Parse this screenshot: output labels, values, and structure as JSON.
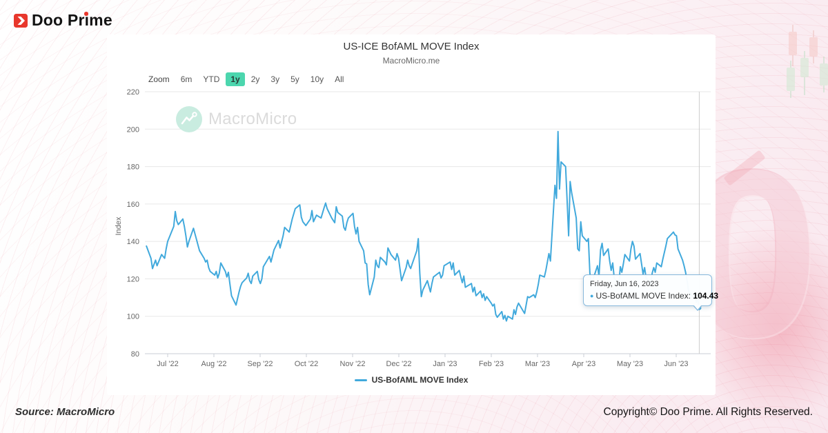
{
  "brand": {
    "name": "Doo Prime",
    "red": "#e8372c"
  },
  "background": {
    "decorative_zero": "0"
  },
  "footer": {
    "source": "Source: MacroMicro",
    "copyright": "Copyright© Doo Prime. All Rights Reserved."
  },
  "chart": {
    "title": "US-ICE BofAML MOVE Index",
    "subtitle": "MacroMicro.me",
    "watermark": "MacroMicro",
    "legend": "US-BofAML MOVE Index",
    "range_selector": {
      "zoom_label": "Zoom",
      "options": [
        "6m",
        "YTD",
        "1y",
        "2y",
        "3y",
        "5y",
        "10y",
        "All"
      ],
      "selected": "1y"
    },
    "tooltip": {
      "date": "Friday, Jun 16, 2023",
      "series_label": "US-BofAML MOVE Index:",
      "value": "104.43"
    },
    "colors": {
      "line": "#41a9dc",
      "range_selected_bg": "#4cd6ae",
      "grid": "#e7e7e7",
      "axis": "#c9ced4",
      "crosshair": "#cccccc",
      "tick_text": "#666666"
    }
  },
  "chart_data": {
    "type": "line",
    "title": "US-ICE BofAML MOVE Index",
    "subtitle": "MacroMicro.me",
    "xlabel": "",
    "ylabel": "Index",
    "ylim": [
      80,
      220
    ],
    "yticks": [
      80,
      100,
      120,
      140,
      160,
      180,
      200,
      220
    ],
    "xticks": [
      "Jul '22",
      "Aug '22",
      "Sep '22",
      "Oct '22",
      "Nov '22",
      "Dec '22",
      "Jan '23",
      "Feb '23",
      "Mar '23",
      "Apr '23",
      "May '23",
      "Jun '23"
    ],
    "grid": true,
    "legend_position": "bottom",
    "crosshair_x": "2023-06-16",
    "last_point": {
      "date": "2023-06-16",
      "label": "Friday, Jun 16, 2023",
      "value": 104.43
    },
    "series": [
      {
        "name": "US-BofAML MOVE Index",
        "color": "#41a9dc",
        "points": [
          [
            "2022-06-17",
            137.5
          ],
          [
            "2022-06-20",
            131
          ],
          [
            "2022-06-21",
            125.5
          ],
          [
            "2022-06-23",
            130
          ],
          [
            "2022-06-24",
            127
          ],
          [
            "2022-06-27",
            133
          ],
          [
            "2022-06-29",
            131
          ],
          [
            "2022-06-30",
            136
          ],
          [
            "2022-07-01",
            140
          ],
          [
            "2022-07-05",
            148
          ],
          [
            "2022-07-06",
            156
          ],
          [
            "2022-07-07",
            151
          ],
          [
            "2022-07-08",
            149
          ],
          [
            "2022-07-11",
            152
          ],
          [
            "2022-07-12",
            148
          ],
          [
            "2022-07-13",
            143
          ],
          [
            "2022-07-14",
            137
          ],
          [
            "2022-07-15",
            140
          ],
          [
            "2022-07-18",
            147
          ],
          [
            "2022-07-19",
            144
          ],
          [
            "2022-07-20",
            141
          ],
          [
            "2022-07-21",
            138
          ],
          [
            "2022-07-22",
            135
          ],
          [
            "2022-07-25",
            131
          ],
          [
            "2022-07-26",
            129
          ],
          [
            "2022-07-27",
            130
          ],
          [
            "2022-07-28",
            126
          ],
          [
            "2022-07-29",
            124
          ],
          [
            "2022-08-01",
            122
          ],
          [
            "2022-08-02",
            124
          ],
          [
            "2022-08-03",
            120.5
          ],
          [
            "2022-08-04",
            123
          ],
          [
            "2022-08-05",
            128.5
          ],
          [
            "2022-08-08",
            124
          ],
          [
            "2022-08-09",
            121
          ],
          [
            "2022-08-10",
            123.5
          ],
          [
            "2022-08-11",
            117
          ],
          [
            "2022-08-12",
            111
          ],
          [
            "2022-08-15",
            106
          ],
          [
            "2022-08-16",
            109.5
          ],
          [
            "2022-08-17",
            113
          ],
          [
            "2022-08-18",
            116
          ],
          [
            "2022-08-19",
            118
          ],
          [
            "2022-08-22",
            120.5
          ],
          [
            "2022-08-23",
            123
          ],
          [
            "2022-08-24",
            119
          ],
          [
            "2022-08-25",
            117.5
          ],
          [
            "2022-08-26",
            121.5
          ],
          [
            "2022-08-29",
            124
          ],
          [
            "2022-08-30",
            119.5
          ],
          [
            "2022-08-31",
            117.5
          ],
          [
            "2022-09-01",
            120
          ],
          [
            "2022-09-02",
            126.5
          ],
          [
            "2022-09-06",
            132
          ],
          [
            "2022-09-07",
            129
          ],
          [
            "2022-09-09",
            135.5
          ],
          [
            "2022-09-12",
            140.5
          ],
          [
            "2022-09-13",
            136.5
          ],
          [
            "2022-09-15",
            143
          ],
          [
            "2022-09-16",
            147.5
          ],
          [
            "2022-09-19",
            145
          ],
          [
            "2022-09-21",
            152
          ],
          [
            "2022-09-23",
            157.5
          ],
          [
            "2022-09-26",
            159.5
          ],
          [
            "2022-09-27",
            153
          ],
          [
            "2022-09-28",
            150.5
          ],
          [
            "2022-09-30",
            148.5
          ],
          [
            "2022-10-03",
            152
          ],
          [
            "2022-10-04",
            156.5
          ],
          [
            "2022-10-05",
            150.5
          ],
          [
            "2022-10-07",
            154
          ],
          [
            "2022-10-10",
            152.5
          ],
          [
            "2022-10-12",
            158
          ],
          [
            "2022-10-13",
            160.5
          ],
          [
            "2022-10-14",
            157.5
          ],
          [
            "2022-10-17",
            152.5
          ],
          [
            "2022-10-19",
            150
          ],
          [
            "2022-10-20",
            158.5
          ],
          [
            "2022-10-21",
            155.5
          ],
          [
            "2022-10-24",
            153.5
          ],
          [
            "2022-10-25",
            147.5
          ],
          [
            "2022-10-26",
            146
          ],
          [
            "2022-10-27",
            150
          ],
          [
            "2022-10-28",
            152.5
          ],
          [
            "2022-10-31",
            155
          ],
          [
            "2022-11-01",
            148
          ],
          [
            "2022-11-02",
            144
          ],
          [
            "2022-11-03",
            147.5
          ],
          [
            "2022-11-04",
            140
          ],
          [
            "2022-11-07",
            135
          ],
          [
            "2022-11-08",
            128.5
          ],
          [
            "2022-11-09",
            128
          ],
          [
            "2022-11-10",
            117
          ],
          [
            "2022-11-11",
            111.5
          ],
          [
            "2022-11-14",
            121
          ],
          [
            "2022-11-15",
            130
          ],
          [
            "2022-11-16",
            127
          ],
          [
            "2022-11-17",
            126
          ],
          [
            "2022-11-18",
            131.5
          ],
          [
            "2022-11-21",
            129
          ],
          [
            "2022-11-22",
            127.5
          ],
          [
            "2022-11-23",
            136.5
          ],
          [
            "2022-11-25",
            133
          ],
          [
            "2022-11-28",
            130
          ],
          [
            "2022-11-29",
            133.5
          ],
          [
            "2022-11-30",
            131
          ],
          [
            "2022-12-01",
            125
          ],
          [
            "2022-12-02",
            119
          ],
          [
            "2022-12-05",
            126
          ],
          [
            "2022-12-06",
            130
          ],
          [
            "2022-12-07",
            127
          ],
          [
            "2022-12-08",
            125.5
          ],
          [
            "2022-12-09",
            128
          ],
          [
            "2022-12-12",
            135
          ],
          [
            "2022-12-13",
            141.5
          ],
          [
            "2022-12-14",
            123
          ],
          [
            "2022-12-15",
            110.5
          ],
          [
            "2022-12-16",
            114
          ],
          [
            "2022-12-19",
            119
          ],
          [
            "2022-12-20",
            116
          ],
          [
            "2022-12-21",
            113
          ],
          [
            "2022-12-22",
            117.5
          ],
          [
            "2022-12-23",
            121
          ],
          [
            "2022-12-27",
            123.5
          ],
          [
            "2022-12-28",
            120.5
          ],
          [
            "2022-12-29",
            122
          ],
          [
            "2022-12-30",
            127
          ],
          [
            "2023-01-03",
            129
          ],
          [
            "2023-01-04",
            125
          ],
          [
            "2023-01-05",
            128.5
          ],
          [
            "2023-01-06",
            122
          ],
          [
            "2023-01-09",
            124.5
          ],
          [
            "2023-01-10",
            121
          ],
          [
            "2023-01-11",
            118
          ],
          [
            "2023-01-12",
            121.5
          ],
          [
            "2023-01-13",
            115.5
          ],
          [
            "2023-01-17",
            117.5
          ],
          [
            "2023-01-18",
            113
          ],
          [
            "2023-01-19",
            115.5
          ],
          [
            "2023-01-20",
            111
          ],
          [
            "2023-01-23",
            113.5
          ],
          [
            "2023-01-24",
            110
          ],
          [
            "2023-01-25",
            112
          ],
          [
            "2023-01-26",
            108.5
          ],
          [
            "2023-01-27",
            110.5
          ],
          [
            "2023-01-30",
            107
          ],
          [
            "2023-01-31",
            105.5
          ],
          [
            "2023-02-01",
            106.5
          ],
          [
            "2023-02-02",
            101
          ],
          [
            "2023-02-03",
            99.5
          ],
          [
            "2023-02-06",
            102.5
          ],
          [
            "2023-02-07",
            98.5
          ],
          [
            "2023-02-08",
            100.5
          ],
          [
            "2023-02-09",
            97.5
          ],
          [
            "2023-02-10",
            100
          ],
          [
            "2023-02-13",
            98.5
          ],
          [
            "2023-02-14",
            103.5
          ],
          [
            "2023-02-15",
            101
          ],
          [
            "2023-02-16",
            105
          ],
          [
            "2023-02-17",
            107
          ],
          [
            "2023-02-21",
            101.5
          ],
          [
            "2023-02-22",
            106
          ],
          [
            "2023-02-23",
            110.5
          ],
          [
            "2023-02-24",
            110
          ],
          [
            "2023-02-27",
            111.5
          ],
          [
            "2023-02-28",
            110
          ],
          [
            "2023-03-01",
            113
          ],
          [
            "2023-03-02",
            117
          ],
          [
            "2023-03-03",
            122
          ],
          [
            "2023-03-06",
            121
          ],
          [
            "2023-03-07",
            124.5
          ],
          [
            "2023-03-08",
            129
          ],
          [
            "2023-03-09",
            133.5
          ],
          [
            "2023-03-10",
            129.5
          ],
          [
            "2023-03-13",
            170
          ],
          [
            "2023-03-14",
            163
          ],
          [
            "2023-03-15",
            198.7
          ],
          [
            "2023-03-16",
            168
          ],
          [
            "2023-03-17",
            182.5
          ],
          [
            "2023-03-20",
            180
          ],
          [
            "2023-03-21",
            162
          ],
          [
            "2023-03-22",
            143
          ],
          [
            "2023-03-23",
            172
          ],
          [
            "2023-03-24",
            166
          ],
          [
            "2023-03-27",
            152.5
          ],
          [
            "2023-03-28",
            136
          ],
          [
            "2023-03-29",
            135
          ],
          [
            "2023-03-30",
            150.5
          ],
          [
            "2023-03-31",
            143
          ],
          [
            "2023-04-03",
            140
          ],
          [
            "2023-04-04",
            141.5
          ],
          [
            "2023-04-05",
            123
          ],
          [
            "2023-04-06",
            117
          ],
          [
            "2023-04-10",
            127
          ],
          [
            "2023-04-11",
            121.5
          ],
          [
            "2023-04-12",
            135.5
          ],
          [
            "2023-04-13",
            139
          ],
          [
            "2023-04-14",
            132.5
          ],
          [
            "2023-04-17",
            136
          ],
          [
            "2023-04-18",
            129.5
          ],
          [
            "2023-04-19",
            124.5
          ],
          [
            "2023-04-20",
            128.5
          ],
          [
            "2023-04-21",
            120.5
          ],
          [
            "2023-04-24",
            116.5
          ],
          [
            "2023-04-25",
            126.5
          ],
          [
            "2023-04-26",
            123.5
          ],
          [
            "2023-04-27",
            128
          ],
          [
            "2023-04-28",
            133
          ],
          [
            "2023-05-01",
            129.5
          ],
          [
            "2023-05-02",
            136
          ],
          [
            "2023-05-03",
            140
          ],
          [
            "2023-05-04",
            137.5
          ],
          [
            "2023-05-05",
            130.5
          ],
          [
            "2023-05-08",
            133.5
          ],
          [
            "2023-05-09",
            128
          ],
          [
            "2023-05-10",
            122.5
          ],
          [
            "2023-05-11",
            126
          ],
          [
            "2023-05-12",
            120.5
          ],
          [
            "2023-05-15",
            117.5
          ],
          [
            "2023-05-16",
            123
          ],
          [
            "2023-05-17",
            126
          ],
          [
            "2023-05-18",
            123.5
          ],
          [
            "2023-05-19",
            128.5
          ],
          [
            "2023-05-22",
            126.5
          ],
          [
            "2023-05-23",
            130.5
          ],
          [
            "2023-05-24",
            134
          ],
          [
            "2023-05-25",
            137.5
          ],
          [
            "2023-05-26",
            141.5
          ],
          [
            "2023-05-30",
            145
          ],
          [
            "2023-05-31",
            143.5
          ],
          [
            "2023-06-01",
            143
          ],
          [
            "2023-06-02",
            136
          ],
          [
            "2023-06-05",
            130
          ],
          [
            "2023-06-06",
            127
          ],
          [
            "2023-06-07",
            123.5
          ],
          [
            "2023-06-08",
            119
          ],
          [
            "2023-06-09",
            113.5
          ],
          [
            "2023-06-12",
            110
          ],
          [
            "2023-06-13",
            112.5
          ],
          [
            "2023-06-14",
            107.5
          ],
          [
            "2023-06-15",
            109
          ],
          [
            "2023-06-16",
            104.43
          ]
        ]
      }
    ]
  }
}
